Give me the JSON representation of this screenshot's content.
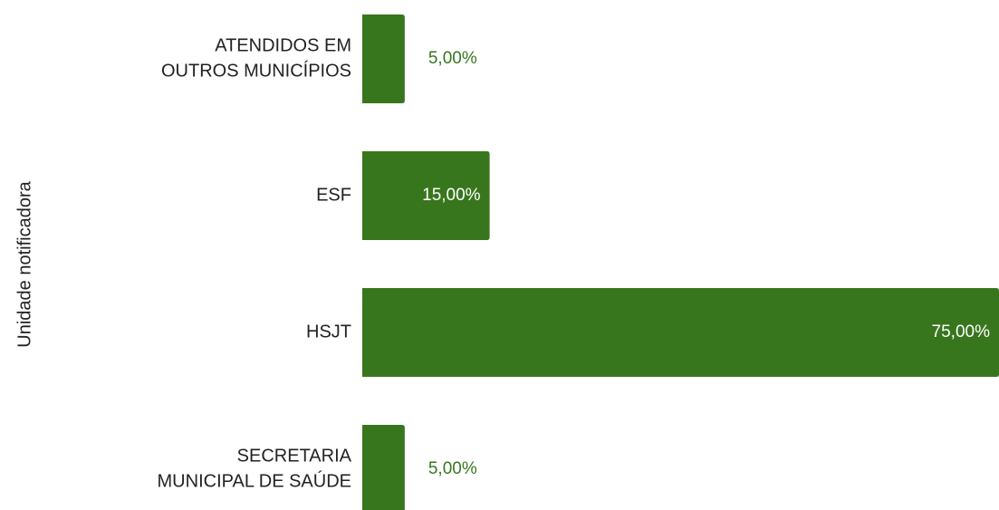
{
  "chart_data": {
    "type": "hbar",
    "y_label": "Unidade notificadora",
    "categories": [
      [
        "ATENDIDOS EM",
        "OUTROS MUNICÍPIOS"
      ],
      [
        "ESF"
      ],
      [
        "HSJT"
      ],
      [
        "SECRETARIA",
        "MUNICIPAL DE SAÚDE"
      ]
    ],
    "values": [
      5,
      15,
      75,
      5
    ],
    "value_labels": [
      "5,00%",
      "15,00%",
      "75,00%",
      "5,00%"
    ],
    "color": "#38761d"
  }
}
